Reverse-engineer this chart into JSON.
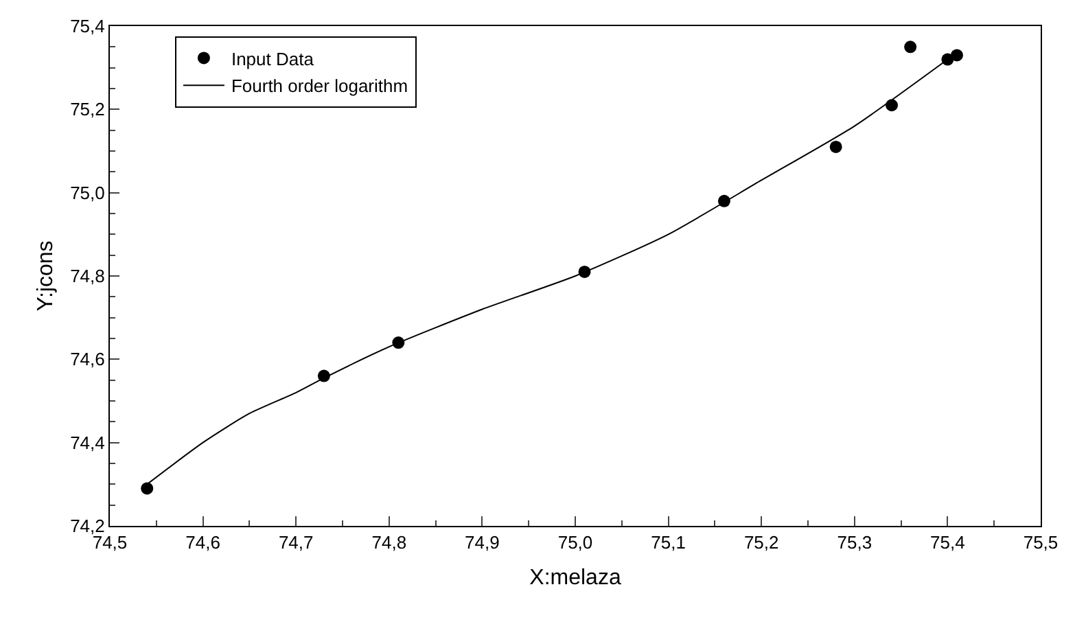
{
  "chart_data": {
    "type": "scatter",
    "xlabel": "X:melaza",
    "ylabel": "Y:jcons",
    "legend": "top left",
    "grid": false,
    "xlim": [
      74.5,
      75.5
    ],
    "ylim": [
      74.2,
      75.4
    ],
    "xticks": [
      {
        "value": 74.5,
        "label": "74,5"
      },
      {
        "value": 74.6,
        "label": "74,6"
      },
      {
        "value": 74.7,
        "label": "74,7"
      },
      {
        "value": 74.8,
        "label": "74,8"
      },
      {
        "value": 74.9,
        "label": "74,9"
      },
      {
        "value": 75.0,
        "label": "75,0"
      },
      {
        "value": 75.1,
        "label": "75,1"
      },
      {
        "value": 75.2,
        "label": "75,2"
      },
      {
        "value": 75.3,
        "label": "75,3"
      },
      {
        "value": 75.4,
        "label": "75,4"
      },
      {
        "value": 75.5,
        "label": "75,5"
      }
    ],
    "yticks": [
      {
        "value": 74.2,
        "label": "74,2"
      },
      {
        "value": 74.4,
        "label": "74,4"
      },
      {
        "value": 74.6,
        "label": "74,6"
      },
      {
        "value": 74.8,
        "label": "74,8"
      },
      {
        "value": 75.0,
        "label": "75,0"
      },
      {
        "value": 75.2,
        "label": "75,2"
      },
      {
        "value": 75.4,
        "label": "75,4"
      }
    ],
    "series": [
      {
        "name": "Input Data",
        "marker": "circle",
        "color": "#000000",
        "x": [
          74.54,
          74.73,
          74.81,
          75.01,
          75.16,
          75.28,
          75.34,
          75.36,
          75.4,
          75.41
        ],
        "values": [
          74.29,
          74.56,
          74.64,
          74.81,
          74.98,
          75.11,
          75.21,
          75.35,
          75.32,
          75.33
        ]
      },
      {
        "name": "Fourth order logarithm",
        "type": "line",
        "marker": "none",
        "line_style": "solid",
        "color": "#000000",
        "x": [
          74.54,
          74.6,
          74.65,
          74.7,
          74.73,
          74.8,
          74.9,
          75.0,
          75.1,
          75.2,
          75.3,
          75.4
        ],
        "values": [
          74.3,
          74.4,
          74.47,
          74.52,
          74.555,
          74.63,
          74.72,
          74.8,
          74.9,
          75.03,
          75.16,
          75.32
        ]
      }
    ]
  }
}
